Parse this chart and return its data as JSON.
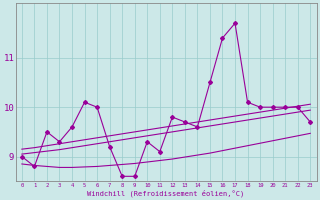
{
  "xlabel": "Windchill (Refroidissement éolien,°C)",
  "x": [
    0,
    1,
    2,
    3,
    4,
    5,
    6,
    7,
    8,
    9,
    10,
    11,
    12,
    13,
    14,
    15,
    16,
    17,
    18,
    19,
    20,
    21,
    22,
    23
  ],
  "y_main": [
    9.0,
    8.8,
    9.5,
    9.3,
    9.6,
    10.1,
    10.0,
    9.2,
    8.6,
    8.6,
    9.3,
    9.1,
    9.8,
    9.7,
    9.6,
    10.5,
    11.4,
    11.7,
    10.1,
    10.0,
    10.0,
    10.0,
    10.0,
    9.7
  ],
  "y_upper": [
    9.15,
    9.18,
    9.22,
    9.26,
    9.3,
    9.34,
    9.38,
    9.42,
    9.46,
    9.5,
    9.54,
    9.58,
    9.62,
    9.66,
    9.7,
    9.74,
    9.78,
    9.82,
    9.86,
    9.9,
    9.94,
    9.98,
    10.02,
    10.06
  ],
  "y_mid": [
    9.05,
    9.08,
    9.11,
    9.14,
    9.18,
    9.22,
    9.26,
    9.3,
    9.34,
    9.38,
    9.42,
    9.46,
    9.5,
    9.54,
    9.58,
    9.62,
    9.66,
    9.7,
    9.74,
    9.78,
    9.82,
    9.86,
    9.9,
    9.94
  ],
  "y_lower": [
    8.85,
    8.82,
    8.8,
    8.78,
    8.78,
    8.79,
    8.8,
    8.82,
    8.84,
    8.86,
    8.89,
    8.92,
    8.95,
    8.99,
    9.03,
    9.07,
    9.12,
    9.17,
    9.22,
    9.27,
    9.32,
    9.37,
    9.42,
    9.47
  ],
  "line_color": "#990099",
  "bg_color": "#cce8e8",
  "grid_color": "#99cccc",
  "ylim": [
    8.5,
    12.1
  ],
  "yticks": [
    9,
    10,
    11
  ],
  "marker": "D",
  "marker_size": 2.0,
  "linewidth": 0.8
}
